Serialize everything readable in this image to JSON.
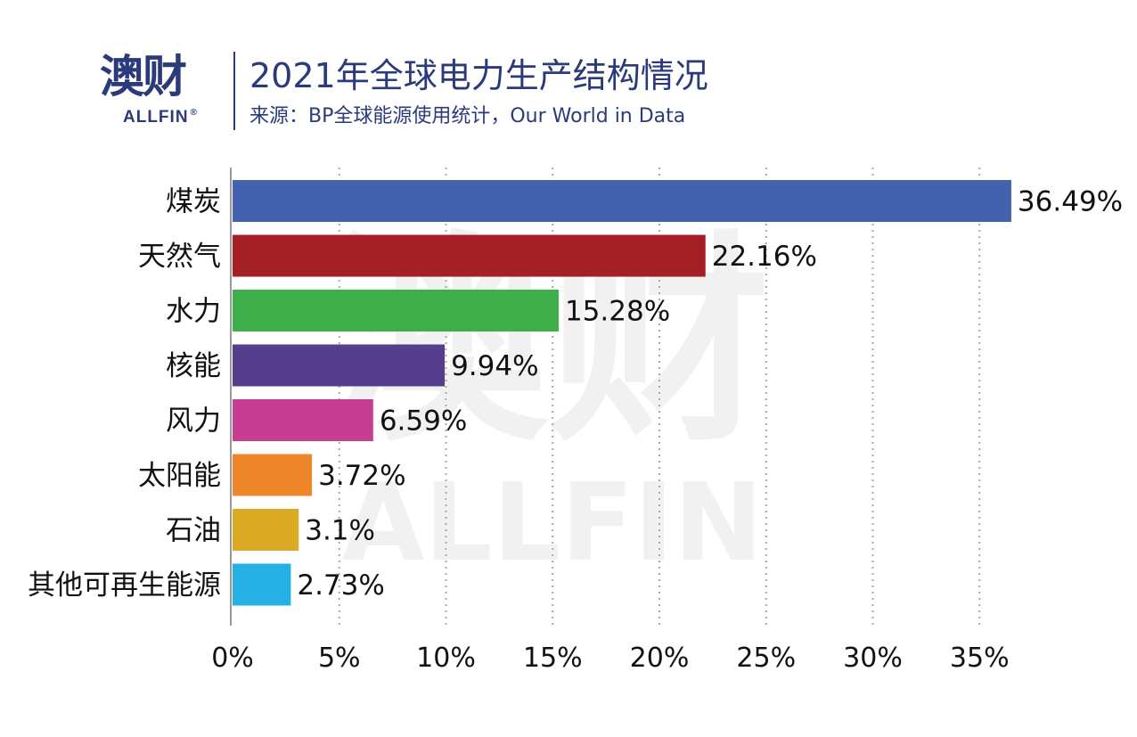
{
  "header": {
    "logo_cn": "澳财",
    "logo_en": "ALLFIN",
    "logo_reg": "®",
    "title": "2021年全球电力生产结构情况",
    "subtitle": "来源：BP全球能源使用统计，Our World in Data"
  },
  "chart_data": {
    "type": "bar",
    "orientation": "horizontal",
    "title": "2021年全球电力生产结构情况",
    "categories": [
      "煤炭",
      "天然气",
      "水力",
      "核能",
      "风力",
      "太阳能",
      "石油",
      "其他可再生能源"
    ],
    "values": [
      36.49,
      22.16,
      15.28,
      9.94,
      6.59,
      3.72,
      3.1,
      2.73
    ],
    "data_labels": [
      "36.49%",
      "22.16%",
      "15.28%",
      "9.94%",
      "6.59%",
      "3.72%",
      "3.1%",
      "2.73%"
    ],
    "colors": [
      "#4461ae",
      "#a51f27",
      "#3dae49",
      "#553e8e",
      "#c63d92",
      "#f0862a",
      "#dcaa25",
      "#25b1e6"
    ],
    "xlim": [
      0,
      36.5
    ],
    "x_ticks": [
      0,
      5,
      10,
      15,
      20,
      25,
      30,
      35
    ],
    "x_tick_labels": [
      "0%",
      "5%",
      "10%",
      "15%",
      "20%",
      "25%",
      "30%",
      "35%"
    ],
    "grid": "vertical dotted",
    "legend": "none",
    "xlabel": "",
    "ylabel": ""
  }
}
